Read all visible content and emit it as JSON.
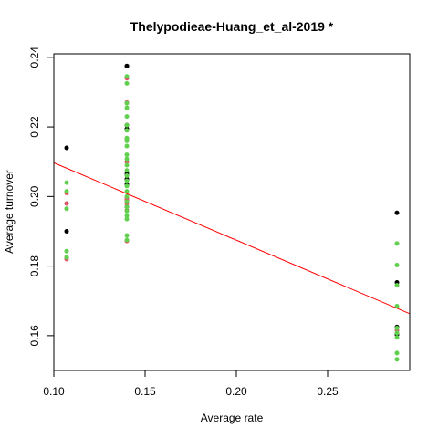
{
  "chart_data": {
    "type": "scatter",
    "title": "Thelypodieae-Huang_et_al-2019 *",
    "xlabel": "Average rate",
    "ylabel": "Average turnover",
    "xlim": [
      0.1,
      0.295
    ],
    "ylim": [
      0.15,
      0.241
    ],
    "x_ticks": [
      "0.10",
      "0.15",
      "0.20",
      "0.25"
    ],
    "y_ticks": [
      "0.16",
      "0.18",
      "0.20",
      "0.22",
      "0.24"
    ],
    "grid": false,
    "legend": "none",
    "series": [
      {
        "color": "#000000",
        "points": [
          [
            0.107,
            0.214
          ],
          [
            0.107,
            0.19
          ],
          [
            0.14,
            0.2375
          ],
          [
            0.14,
            0.2375
          ],
          [
            0.14,
            0.2205
          ],
          [
            0.14,
            0.2195
          ],
          [
            0.14,
            0.2065
          ],
          [
            0.14,
            0.205
          ],
          [
            0.14,
            0.2035
          ],
          [
            0.14,
            0.197
          ],
          [
            0.288,
            0.1953
          ],
          [
            0.288,
            0.1753
          ],
          [
            0.288,
            0.1625
          ],
          [
            0.288,
            0.1603
          ]
        ]
      },
      {
        "color": "#DF536B",
        "points": [
          [
            0.107,
            0.201
          ],
          [
            0.107,
            0.198
          ],
          [
            0.107,
            0.1825
          ],
          [
            0.107,
            0.182
          ],
          [
            0.14,
            0.234
          ],
          [
            0.14,
            0.227
          ],
          [
            0.14,
            0.2165
          ],
          [
            0.14,
            0.21
          ],
          [
            0.14,
            0.1995
          ],
          [
            0.14,
            0.199
          ],
          [
            0.14,
            0.198
          ],
          [
            0.14,
            0.196
          ],
          [
            0.14,
            0.1872
          ],
          [
            0.288,
            0.1615
          ]
        ]
      },
      {
        "color": "#61D04F",
        "points": [
          [
            0.107,
            0.204
          ],
          [
            0.107,
            0.2015
          ],
          [
            0.107,
            0.1965
          ],
          [
            0.107,
            0.1843
          ],
          [
            0.107,
            0.1825
          ],
          [
            0.14,
            0.2345
          ],
          [
            0.14,
            0.2325
          ],
          [
            0.14,
            0.2268
          ],
          [
            0.14,
            0.2255
          ],
          [
            0.14,
            0.223
          ],
          [
            0.14,
            0.2205
          ],
          [
            0.14,
            0.219
          ],
          [
            0.14,
            0.2168
          ],
          [
            0.14,
            0.216
          ],
          [
            0.14,
            0.2145
          ],
          [
            0.14,
            0.212
          ],
          [
            0.14,
            0.2108
          ],
          [
            0.14,
            0.209
          ],
          [
            0.14,
            0.2075
          ],
          [
            0.14,
            0.206
          ],
          [
            0.14,
            0.2045
          ],
          [
            0.14,
            0.203
          ],
          [
            0.14,
            0.2015
          ],
          [
            0.14,
            0.2
          ],
          [
            0.14,
            0.1985
          ],
          [
            0.14,
            0.197
          ],
          [
            0.14,
            0.1958
          ],
          [
            0.14,
            0.1945
          ],
          [
            0.14,
            0.1935
          ],
          [
            0.14,
            0.1888
          ],
          [
            0.14,
            0.1875
          ],
          [
            0.288,
            0.1865
          ],
          [
            0.288,
            0.1803
          ],
          [
            0.288,
            0.1745
          ],
          [
            0.288,
            0.1685
          ],
          [
            0.288,
            0.1622
          ],
          [
            0.288,
            0.1608
          ],
          [
            0.288,
            0.1595
          ],
          [
            0.288,
            0.155
          ],
          [
            0.288,
            0.1532
          ]
        ]
      }
    ],
    "trendline": {
      "color": "#FF0000",
      "x": [
        0.1,
        0.295
      ],
      "y": [
        0.2097,
        0.1663
      ]
    }
  }
}
